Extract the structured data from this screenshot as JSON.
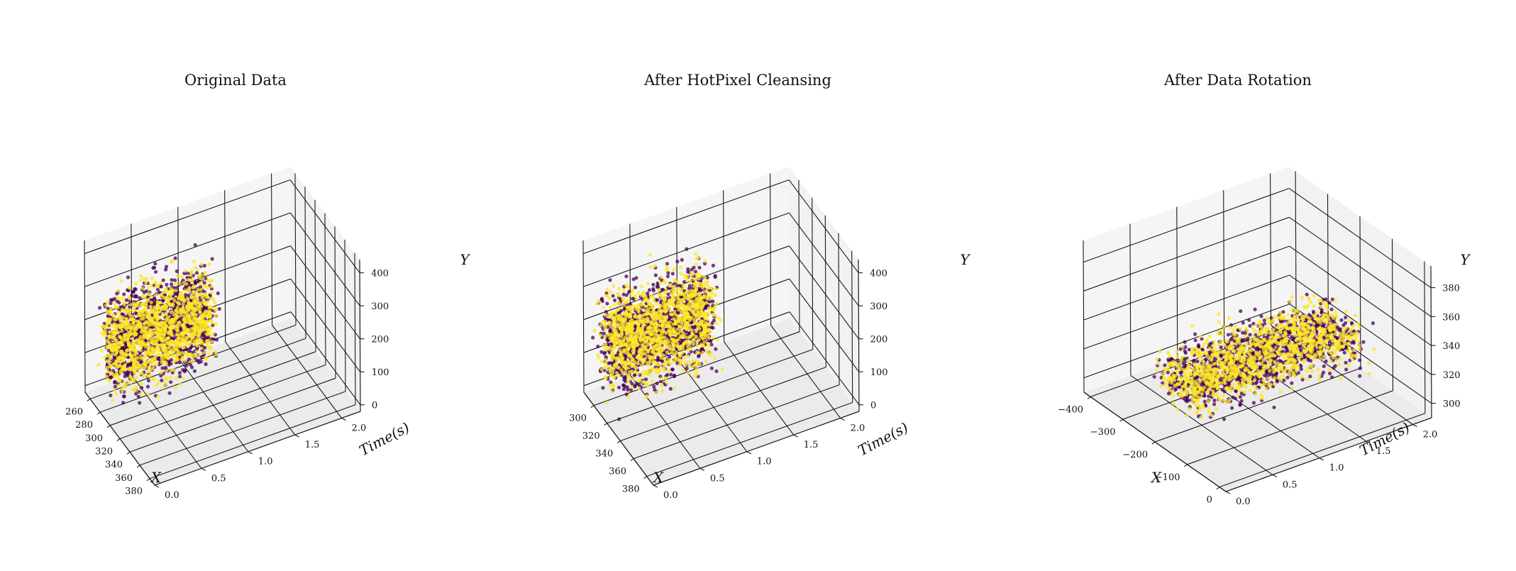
{
  "colors": {
    "purple": "#440154",
    "yellow": "#fde725",
    "pane": "#f2f2f2",
    "grid": "#1a1a1a"
  },
  "chart_data": [
    {
      "type": "scatter",
      "title": "Original Data",
      "xlabel": "X",
      "ylabel": "Time(s)",
      "zlabel": "Y",
      "xlim": [
        250,
        390
      ],
      "ylim": [
        0,
        2.2
      ],
      "zlim": [
        -20,
        440
      ],
      "xticks": [
        "260",
        "280",
        "300",
        "320",
        "340",
        "360",
        "380"
      ],
      "yticks": [
        "0.0",
        "0.5",
        "1.0",
        "1.5",
        "2.0"
      ],
      "zticks": [
        "0",
        "100",
        "200",
        "300",
        "400"
      ],
      "grid": true,
      "series": [
        {
          "color": "#440154",
          "cloud": {
            "x": [
              268,
              325
            ],
            "t": [
              0.0,
              1.1
            ],
            "y": [
              20,
              400
            ]
          }
        },
        {
          "color": "#fde725",
          "cloud": {
            "x": [
              268,
              325
            ],
            "t": [
              0.0,
              1.1
            ],
            "y": [
              20,
              400
            ]
          }
        }
      ]
    },
    {
      "type": "scatter",
      "title": "After HotPixel Cleansing",
      "xlabel": "X",
      "ylabel": "Time(s)",
      "zlabel": "Y",
      "xlim": [
        285,
        390
      ],
      "ylim": [
        0,
        2.2
      ],
      "zlim": [
        -20,
        440
      ],
      "xticks": [
        "300",
        "320",
        "340",
        "360",
        "380"
      ],
      "yticks": [
        "0.0",
        "0.5",
        "1.0",
        "1.5",
        "2.0"
      ],
      "zticks": [
        "0",
        "100",
        "200",
        "300",
        "400"
      ],
      "grid": true,
      "series": [
        {
          "color": "#440154",
          "cloud": {
            "x": [
              295,
              345
            ],
            "t": [
              0.0,
              1.1
            ],
            "y": [
              20,
              400
            ]
          }
        },
        {
          "color": "#fde725",
          "cloud": {
            "x": [
              295,
              345
            ],
            "t": [
              0.0,
              1.1
            ],
            "y": [
              20,
              400
            ]
          }
        }
      ]
    },
    {
      "type": "scatter",
      "title": "After Data Rotation",
      "xlabel": "X",
      "ylabel": "Time(s)",
      "zlabel": "Y",
      "xlim": [
        -420,
        20
      ],
      "ylim": [
        0,
        2.2
      ],
      "zlim": [
        290,
        395
      ],
      "xticks": [
        "−400",
        "−300",
        "−200",
        "−100",
        "0"
      ],
      "yticks": [
        "0.0",
        "0.5",
        "1.0",
        "1.5",
        "2.0"
      ],
      "zticks": [
        "300",
        "320",
        "340",
        "360",
        "380"
      ],
      "grid": true,
      "series": [
        {
          "color": "#440154",
          "cloud": {
            "x": [
              -320,
              -60
            ],
            "t": [
              0.2,
              2.0
            ],
            "y": [
              305,
              345
            ]
          }
        },
        {
          "color": "#fde725",
          "cloud": {
            "x": [
              -320,
              -60
            ],
            "t": [
              0.2,
              2.0
            ],
            "y": [
              305,
              345
            ]
          }
        }
      ]
    }
  ]
}
